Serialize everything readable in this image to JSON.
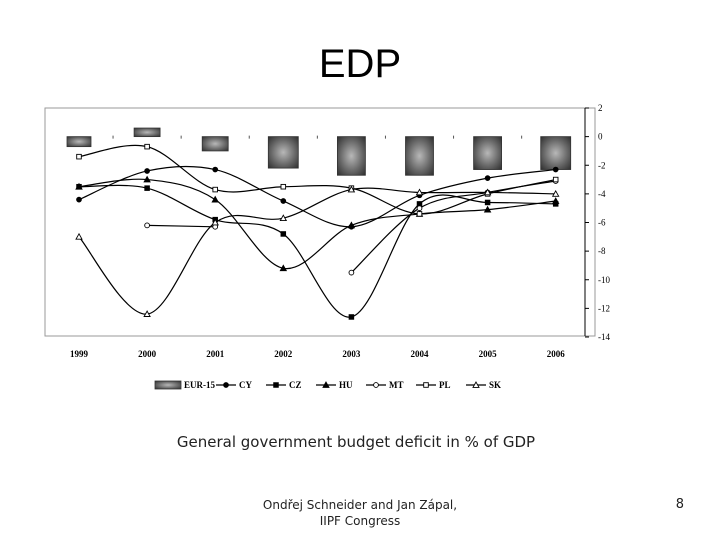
{
  "slide": {
    "title": "EDP",
    "caption": "General government budget deficit in % of GDP",
    "footer_line1": "Ondřej Schneider and Jan Zápal,",
    "footer_line2": "IIPF Congress",
    "page_number": "8"
  },
  "chart_data": {
    "type": "line",
    "title": "",
    "xlabel": "",
    "ylabel": "General government budget deficit in % of GDP",
    "categories": [
      "1999",
      "2000",
      "2001",
      "2002",
      "2003",
      "2004",
      "2005",
      "2006"
    ],
    "ylim": [
      -14,
      2
    ],
    "yticks": [
      2,
      0,
      -2,
      -4,
      -6,
      -8,
      -10,
      -12,
      -14
    ],
    "ytick_labels": [
      "2",
      "0",
      "-2",
      "-4",
      "-6",
      "-8",
      "-10",
      "-12",
      "-14"
    ],
    "bar_series": {
      "name": "EUR-15",
      "values": [
        -0.7,
        0.6,
        -1.0,
        -2.2,
        -2.7,
        -2.7,
        -2.3,
        -2.3
      ]
    },
    "series": [
      {
        "name": "CY",
        "marker": "circle-filled",
        "values": [
          -4.4,
          -2.4,
          -2.3,
          -4.5,
          -6.3,
          -4.1,
          -2.9,
          -2.3
        ]
      },
      {
        "name": "CZ",
        "marker": "square-filled",
        "values": [
          -3.5,
          -3.6,
          -5.8,
          -6.8,
          -12.6,
          -4.7,
          -4.6,
          -4.7
        ]
      },
      {
        "name": "HU",
        "marker": "triangle-filled",
        "values": [
          -3.5,
          -3.0,
          -4.4,
          -9.2,
          -6.2,
          -5.4,
          -5.1,
          -4.5
        ]
      },
      {
        "name": "MT",
        "marker": "circle-open",
        "values": [
          null,
          -6.2,
          -6.3,
          null,
          -9.5,
          -5.0,
          -3.9,
          -3.1
        ]
      },
      {
        "name": "PL",
        "marker": "square-open",
        "values": [
          -1.4,
          -0.7,
          -3.7,
          -3.5,
          -3.6,
          -5.4,
          -4.0,
          -3.0
        ]
      },
      {
        "name": "SK",
        "marker": "triangle-open",
        "values": [
          -7.0,
          -12.4,
          -6.0,
          -5.7,
          -3.7,
          -3.9,
          -3.9,
          -4.0
        ]
      }
    ],
    "legend": {
      "position": "bottom",
      "labels": [
        "EUR-15",
        "CY",
        "CZ",
        "HU",
        "MT",
        "PL",
        "SK"
      ]
    },
    "grid": false
  }
}
